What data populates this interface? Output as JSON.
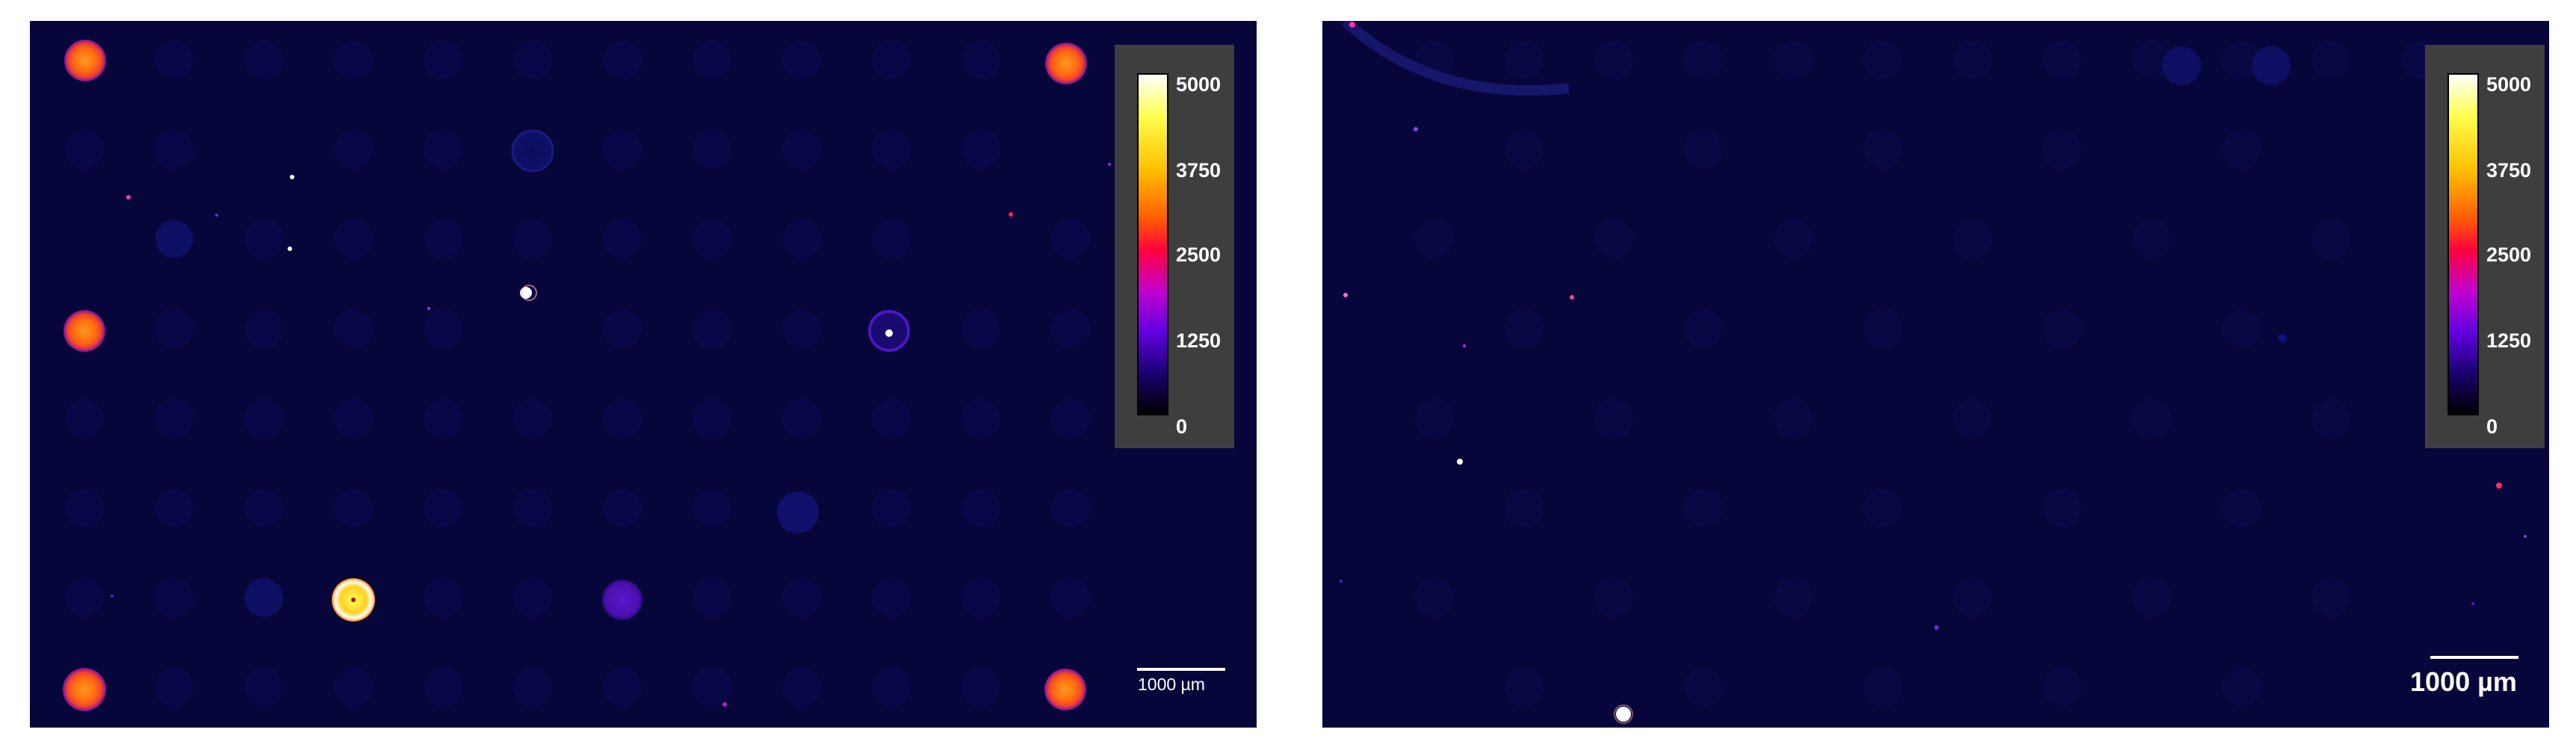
{
  "panels": [
    {
      "id": "left",
      "colorbar": {
        "ticks": [
          "5000",
          "3750",
          "2500",
          "1250",
          "0"
        ],
        "gradient": [
          "#ffffff",
          "#ffff40",
          "#ffb000",
          "#ff5000",
          "#ff0040",
          "#c000d0",
          "#6000e0",
          "#1a0070",
          "#000000"
        ]
      },
      "scalebar": {
        "label": "1000 µm"
      }
    },
    {
      "id": "right",
      "colorbar": {
        "ticks": [
          "5000",
          "3750",
          "2500",
          "1250",
          "0"
        ],
        "gradient": [
          "#ffffff",
          "#ffff40",
          "#ffb000",
          "#ff5000",
          "#ff0040",
          "#c000d0",
          "#6000e0",
          "#1a0070",
          "#000000"
        ]
      },
      "scalebar": {
        "label": "1000 µm"
      }
    }
  ],
  "colors": {
    "background": "#06063a",
    "colorbar_box": "#3e3e3e"
  }
}
